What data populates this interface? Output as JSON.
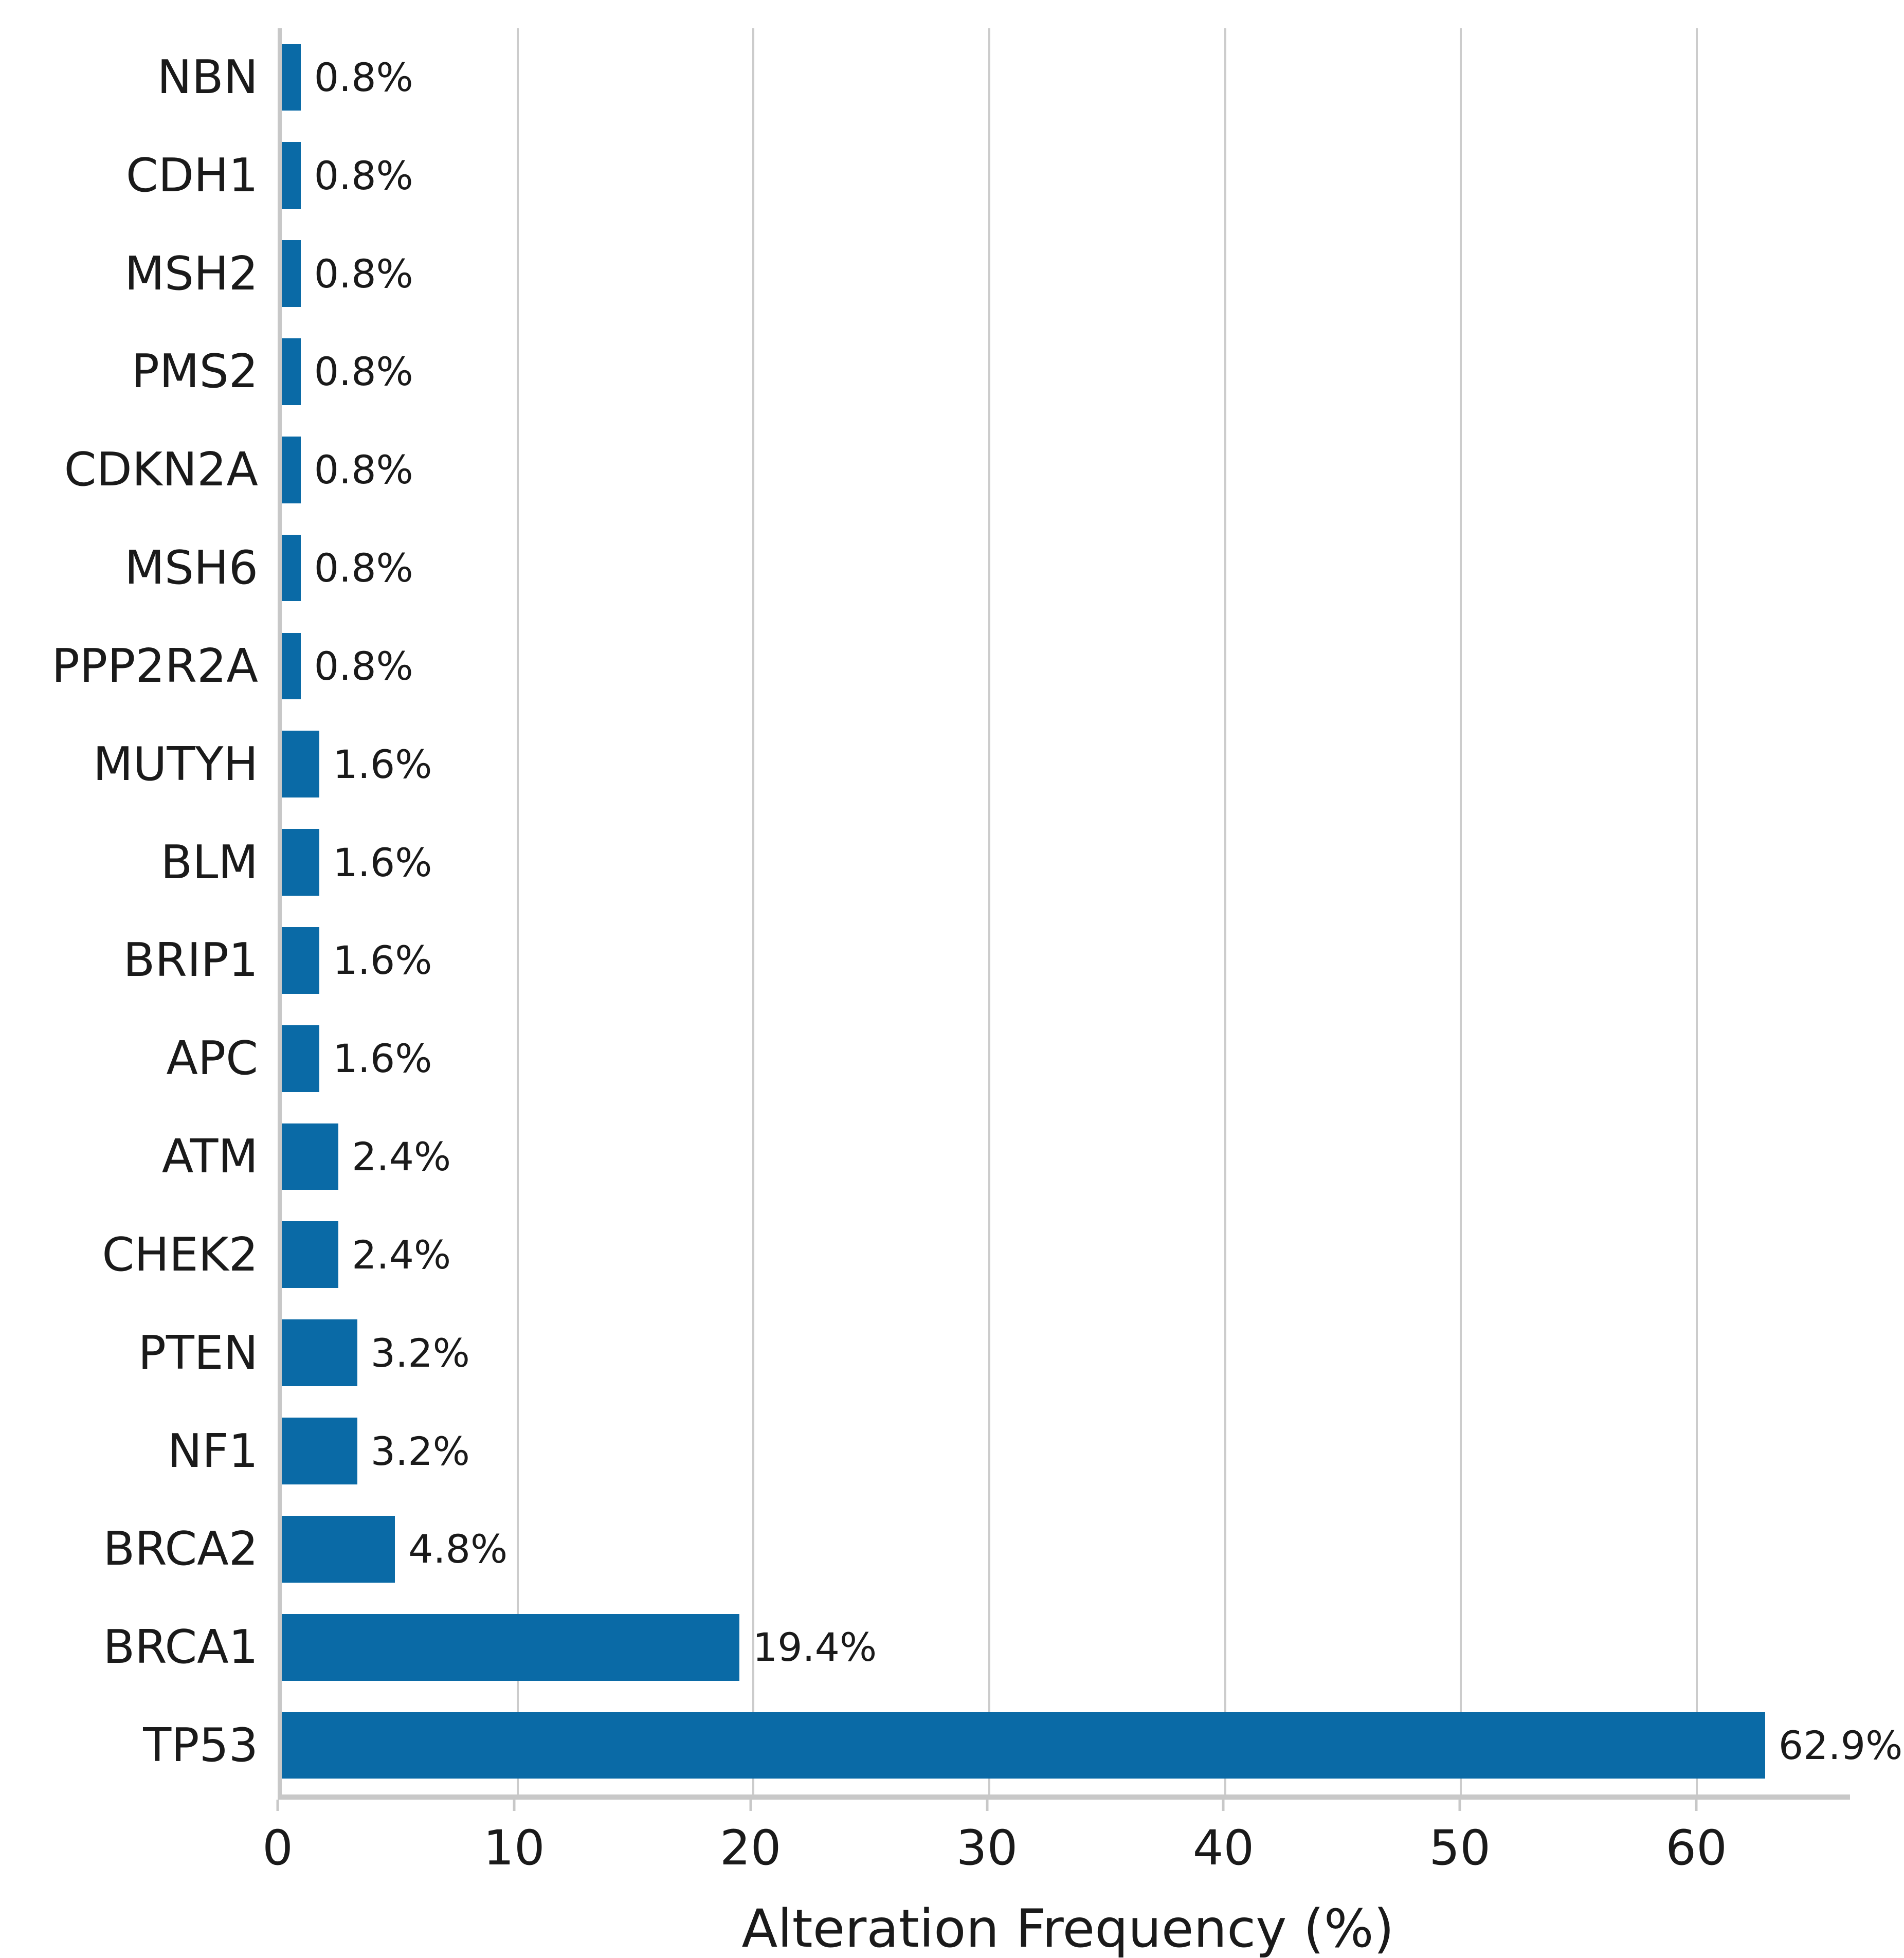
{
  "chart_data": {
    "type": "bar",
    "orientation": "horizontal",
    "title": "",
    "xlabel": "Alteration Frequency (%)",
    "ylabel": "",
    "categories": [
      "NBN",
      "CDH1",
      "MSH2",
      "PMS2",
      "CDKN2A",
      "MSH6",
      "PPP2R2A",
      "MUTYH",
      "BLM",
      "BRIP1",
      "APC",
      "ATM",
      "CHEK2",
      "PTEN",
      "NF1",
      "BRCA2",
      "BRCA1",
      "TP53"
    ],
    "values": [
      0.8,
      0.8,
      0.8,
      0.8,
      0.8,
      0.8,
      0.8,
      1.6,
      1.6,
      1.6,
      1.6,
      2.4,
      2.4,
      3.2,
      3.2,
      4.8,
      19.4,
      62.9
    ],
    "value_labels": [
      "0.8%",
      "0.8%",
      "0.8%",
      "0.8%",
      "0.8%",
      "0.8%",
      "0.8%",
      "1.6%",
      "1.6%",
      "1.6%",
      "1.6%",
      "2.4%",
      "2.4%",
      "3.2%",
      "3.2%",
      "4.8%",
      "19.4%",
      "62.9%"
    ],
    "x_ticks": [
      0,
      10,
      20,
      30,
      40,
      50,
      60
    ],
    "x_tick_labels": [
      "0",
      "10",
      "20",
      "30",
      "40",
      "50",
      "60"
    ],
    "xlim": [
      0,
      66.5
    ],
    "grid": true,
    "legend": false,
    "colors": {
      "bar": "#0a6aa6",
      "gridline": "#cccccc",
      "spine": "#c8c8c8",
      "text": "#1a1a1a",
      "background": "#ffffff"
    }
  }
}
